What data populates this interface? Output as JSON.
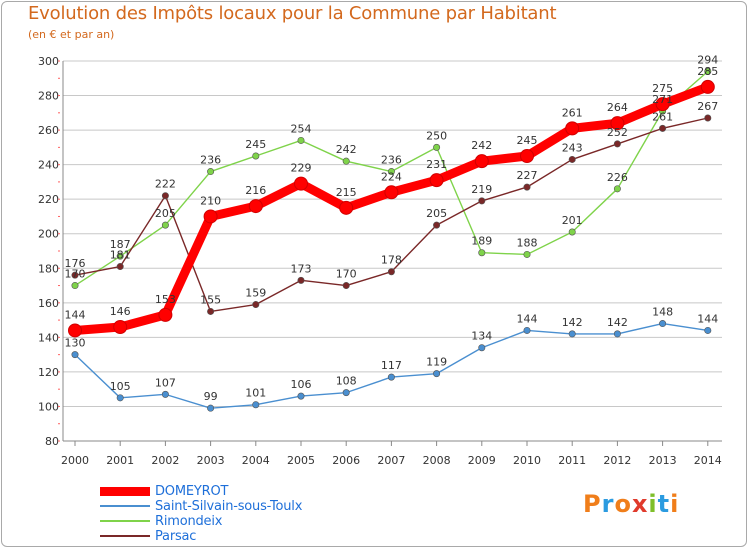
{
  "header": {
    "title": "Evolution des Impôts locaux pour la Commune par Habitant",
    "subtitle": "(en € et par an)"
  },
  "colors": {
    "title": "#d3691e",
    "grid": "#c8c8c8",
    "axis_text": "#333333",
    "value_text": "#333333"
  },
  "chart_data": {
    "type": "line",
    "x": [
      "2000",
      "2001",
      "2002",
      "2003",
      "2004",
      "2005",
      "2006",
      "2007",
      "2008",
      "2009",
      "2010",
      "2011",
      "2012",
      "2013",
      "2014"
    ],
    "ylim": [
      80,
      300
    ],
    "yticks": [
      80,
      100,
      120,
      140,
      160,
      180,
      200,
      220,
      240,
      260,
      280,
      300
    ],
    "grid": true,
    "legend_position": "bottom-left",
    "series": [
      {
        "name": "DOMEYROT",
        "color": "#ff0000",
        "emphasis": true,
        "values": [
          144,
          146,
          153,
          210,
          216,
          229,
          215,
          224,
          231,
          242,
          245,
          261,
          264,
          275,
          285
        ],
        "labels": [
          "144",
          "146",
          "153",
          "210",
          "216",
          "229",
          "215",
          "224",
          "231",
          "242",
          "245",
          "261",
          "264",
          "275",
          "285"
        ]
      },
      {
        "name": "Saint-Silvain-sous-Toulx",
        "color": "#4a8fd0",
        "values": [
          130,
          105,
          107,
          99,
          101,
          106,
          108,
          117,
          119,
          134,
          144,
          142,
          142,
          148,
          144
        ],
        "labels": [
          "130",
          "105",
          "107",
          "99",
          "101",
          "106",
          "108",
          "117",
          "119",
          "134",
          "144",
          "142",
          "142",
          "148",
          "144"
        ]
      },
      {
        "name": "Rimondeix",
        "color": "#7fd34a",
        "values": [
          170,
          187,
          205,
          236,
          245,
          254,
          242,
          236,
          250,
          189,
          188,
          201,
          226,
          271,
          294
        ],
        "labels": [
          "170",
          "187",
          "205",
          "236",
          "245",
          "254",
          "242",
          "236",
          "250",
          "189",
          "188",
          "201",
          "226",
          "271",
          "294"
        ]
      },
      {
        "name": "Parsac",
        "color": "#7a2828",
        "values": [
          176,
          181,
          222,
          155,
          159,
          173,
          170,
          178,
          205,
          219,
          227,
          243,
          252,
          261,
          267
        ],
        "labels": [
          "176",
          "181",
          "222",
          "155",
          "159",
          "173",
          "170",
          "178",
          "205",
          "219",
          "227",
          "243",
          "252",
          "261",
          "267"
        ]
      }
    ]
  },
  "legend": {
    "items": [
      {
        "label": "DOMEYROT",
        "color": "#ff0000",
        "text_color": "#1e6fd9"
      },
      {
        "label": "Saint-Silvain-sous-Toulx",
        "color": "#4a8fd0",
        "text_color": "#1e6fd9"
      },
      {
        "label": "Rimondeix",
        "color": "#7fd34a",
        "text_color": "#1e6fd9"
      },
      {
        "label": "Parsac",
        "color": "#7a2828",
        "text_color": "#1e6fd9"
      }
    ]
  },
  "logo": {
    "text": "Proxiti",
    "letters": [
      "P",
      "r",
      "o",
      "x",
      "i",
      "t",
      "i"
    ],
    "letter_colors": [
      "#f07e1a",
      "#2b9be0",
      "#f07e1a",
      "#e03a2c",
      "#7fbf2a",
      "#2b9be0",
      "#f07e1a"
    ]
  }
}
